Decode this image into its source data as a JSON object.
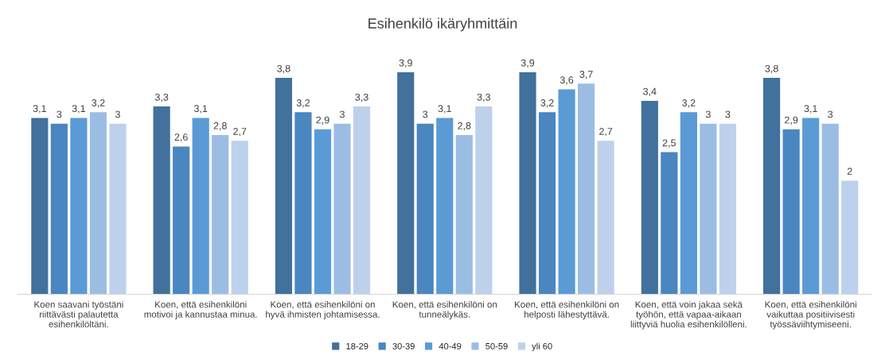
{
  "chart_data": {
    "type": "bar",
    "title": "Esihenkilö ikäryhmittäin",
    "categories": [
      "Koen saavani työstäni\nriittävästi palautetta\nesihenkilöltäni.",
      "Koen, että esihenkilöni\nmotivoi ja kannustaa minua.",
      "Koen, että esihenkilöni on\nhyvä ihmisten johtamisessa.",
      "Koen, että esihenkilöni on\ntunneälykäs.",
      "Koen, että esihenkilöni on\nhelposti lähestyttävä.",
      "Koen, että voin jakaa sekä\ntyöhön, että vapaa-aikaan\nliittyviä huolia esihenkilölleni.",
      "Koen, että esihenkilöni\nvaikuttaa positiivisesti\ntyössäviihtymiseeni."
    ],
    "series": [
      {
        "name": "18-29",
        "color": "#41719c",
        "values": [
          3.1,
          3.3,
          3.8,
          3.9,
          3.9,
          3.4,
          3.8
        ],
        "value_labels": [
          "3,1",
          "3,3",
          "3,8",
          "3,9",
          "3,9",
          "3,4",
          "3,8"
        ]
      },
      {
        "name": "30-39",
        "color": "#4a86c0",
        "values": [
          3,
          2.6,
          3.2,
          3,
          3.2,
          2.5,
          2.9
        ],
        "value_labels": [
          "3",
          "2,6",
          "3,2",
          "3",
          "3,2",
          "2,5",
          "2,9"
        ]
      },
      {
        "name": "40-49",
        "color": "#5b9bd5",
        "values": [
          3.1,
          3.1,
          2.9,
          3.1,
          3.6,
          3.2,
          3.1
        ],
        "value_labels": [
          "3,1",
          "3,1",
          "2,9",
          "3,1",
          "3,6",
          "3,2",
          "3,1"
        ]
      },
      {
        "name": "50-59",
        "color": "#9cbde3",
        "values": [
          3.2,
          2.8,
          3,
          2.8,
          3.7,
          3,
          3
        ],
        "value_labels": [
          "3,2",
          "2,8",
          "3",
          "2,8",
          "3,7",
          "3",
          "3"
        ]
      },
      {
        "name": "yli 60",
        "color": "#bdd1ec",
        "values": [
          3,
          2.7,
          3.3,
          3.3,
          2.7,
          3,
          2
        ],
        "value_labels": [
          "3",
          "2,7",
          "3,3",
          "3,3",
          "2,7",
          "3",
          "2"
        ]
      }
    ],
    "legend": "bottom"
  }
}
